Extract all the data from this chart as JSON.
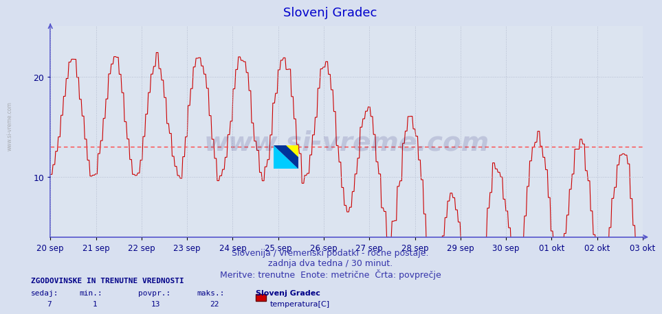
{
  "title": "Slovenj Gradec",
  "title_color": "#0000cc",
  "title_fontsize": 13,
  "bg_color": "#d8e0f0",
  "plot_bg_color": "#dce4f0",
  "line_color": "#cc0000",
  "avg_line_color": "#ff4444",
  "avg_line_value": 13,
  "ylim": [
    4,
    25
  ],
  "yticks": [
    10,
    20
  ],
  "xlabel_color": "#000088",
  "grid_color": "#b0b8cc",
  "axis_color": "#5555cc",
  "subtitle_lines": [
    "Slovenija / vremenski podatki - ročne postaje.",
    "zadnja dva tedna / 30 minut.",
    "Meritve: trenutne  Enote: metrične  Črta: povprečje"
  ],
  "subtitle_color": "#3333aa",
  "subtitle_fontsize": 9,
  "footer_title": "ZGODOVINSKE IN TRENUTNE VREDNOSTI",
  "footer_labels": [
    "sedaj:",
    "min.:",
    "povpr.:",
    "maks.:"
  ],
  "footer_values": [
    "7",
    "1",
    "13",
    "22"
  ],
  "footer_station": "Slovenj Gradec",
  "footer_series": "temperatura[C]",
  "footer_color": "#000088",
  "watermark_text": "www.si-vreme.com",
  "watermark_fontsize": 28,
  "watermark_color": "#1a1a6e",
  "watermark_alpha": 0.15,
  "x_dates": [
    "20 sep",
    "21 sep",
    "22 sep",
    "23 sep",
    "24 sep",
    "25 sep",
    "26 sep",
    "27 sep",
    "28 sep",
    "29 sep",
    "30 sep",
    "01 okt",
    "02 okt",
    "03 okt"
  ],
  "n_points": 672,
  "seed": 42
}
